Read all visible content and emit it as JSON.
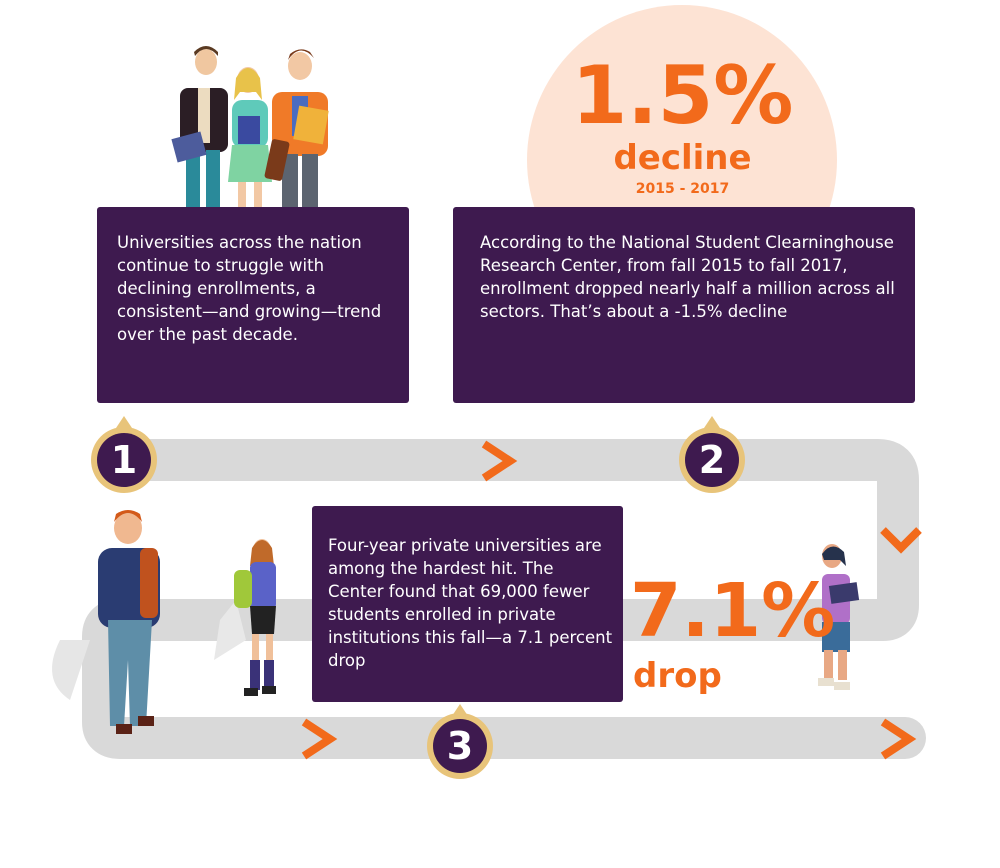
{
  "colors": {
    "accent": "#f26a1b",
    "card": "#3e1a4f",
    "badge_ring": "#e8c47a",
    "path": "#d9d9d9",
    "circle_bg": "#fde3d4"
  },
  "step1": {
    "number": "1",
    "text": "Universities across the nation continue to struggle with declining enrollments, a consistent—and growing—trend over the past decade."
  },
  "step2": {
    "number": "2",
    "text": "According to the National Student Clearninghouse Research Center, from fall 2015 to fall 2017, enrollment dropped nearly half a million across all sectors. That’s about a -1.5% decline"
  },
  "step3": {
    "number": "3",
    "text": "Four-year private universities are among the hardest hit. The Center found that 69,000 fewer students enrolled in private institutions this fall—a 7.1 percent drop"
  },
  "stat_decline": {
    "value": "1.5%",
    "label": "decline",
    "period": "2015 - 2017"
  },
  "stat_drop": {
    "value": "7.1%",
    "label": "drop"
  },
  "icons": [
    "student-group-illustration",
    "walking-student-illustration",
    "girl-with-backpack-illustration",
    "girl-with-phone-illustration",
    "chevron-right-icon",
    "chevron-down-icon"
  ]
}
